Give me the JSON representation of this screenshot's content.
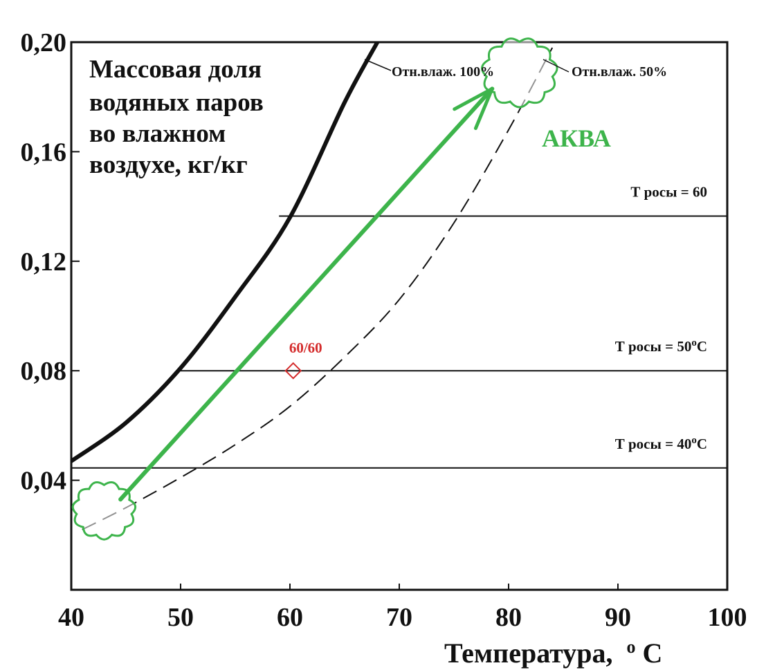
{
  "chart_data": {
    "type": "line",
    "title_lines": [
      "Массовая доля",
      "водяных паров",
      "во влажном",
      "воздухе, кг/кг"
    ],
    "xlabel": "Температура,",
    "xlabel_unit_sup": "o",
    "xlabel_unit": "C",
    "xlim": [
      40,
      100
    ],
    "ylim": [
      0,
      0.2
    ],
    "x_ticks": [
      40,
      50,
      60,
      70,
      80,
      90,
      100
    ],
    "x_tick_labels": [
      "40",
      "50",
      "60",
      "70",
      "80",
      "90",
      "100"
    ],
    "y_ticks": [
      0.04,
      0.08,
      0.12,
      0.16,
      0.2
    ],
    "y_tick_labels": [
      "0,04",
      "0,08",
      "0,12",
      "0,16",
      "0,20"
    ],
    "series": [
      {
        "name": "Отн.влаж. 100%",
        "style": "solid-thick",
        "color": "#111111",
        "x": [
          40,
          45,
          50,
          55,
          60,
          65,
          68
        ],
        "y": [
          0.047,
          0.061,
          0.081,
          0.107,
          0.136,
          0.178,
          0.2
        ]
      },
      {
        "name": "Отн.влаж. 50%",
        "style": "dashed",
        "color": "#111111",
        "x": [
          41,
          45,
          50,
          55,
          60,
          65,
          70,
          75,
          80,
          84
        ],
        "y": [
          0.022,
          0.03,
          0.041,
          0.053,
          0.067,
          0.085,
          0.106,
          0.134,
          0.168,
          0.198
        ]
      }
    ],
    "hlines": [
      {
        "label": "Т росы = 60",
        "label_sup": "",
        "label_tail": "",
        "y": 0.1365,
        "x_start": 59,
        "x_end": 100
      },
      {
        "label": "Т росы = 50",
        "label_sup": "o",
        "label_tail": "C",
        "y": 0.08,
        "x_start": 50,
        "x_end": 100
      },
      {
        "label": "Т росы = 40",
        "label_sup": "o",
        "label_tail": "C",
        "y": 0.0445,
        "x_start": 40,
        "x_end": 100
      }
    ],
    "point": {
      "label": "60/60",
      "x": 60.3,
      "y": 0.08,
      "color": "#d42b2b"
    },
    "arrow": {
      "label": "АКВА",
      "color": "#3db44b",
      "from": [
        44.5,
        0.033
      ],
      "to": [
        78.5,
        0.183
      ]
    },
    "clouds": [
      {
        "x": 43,
        "y": 0.029,
        "r": 40
      },
      {
        "x": 81,
        "y": 0.189,
        "r": 48
      }
    ]
  }
}
